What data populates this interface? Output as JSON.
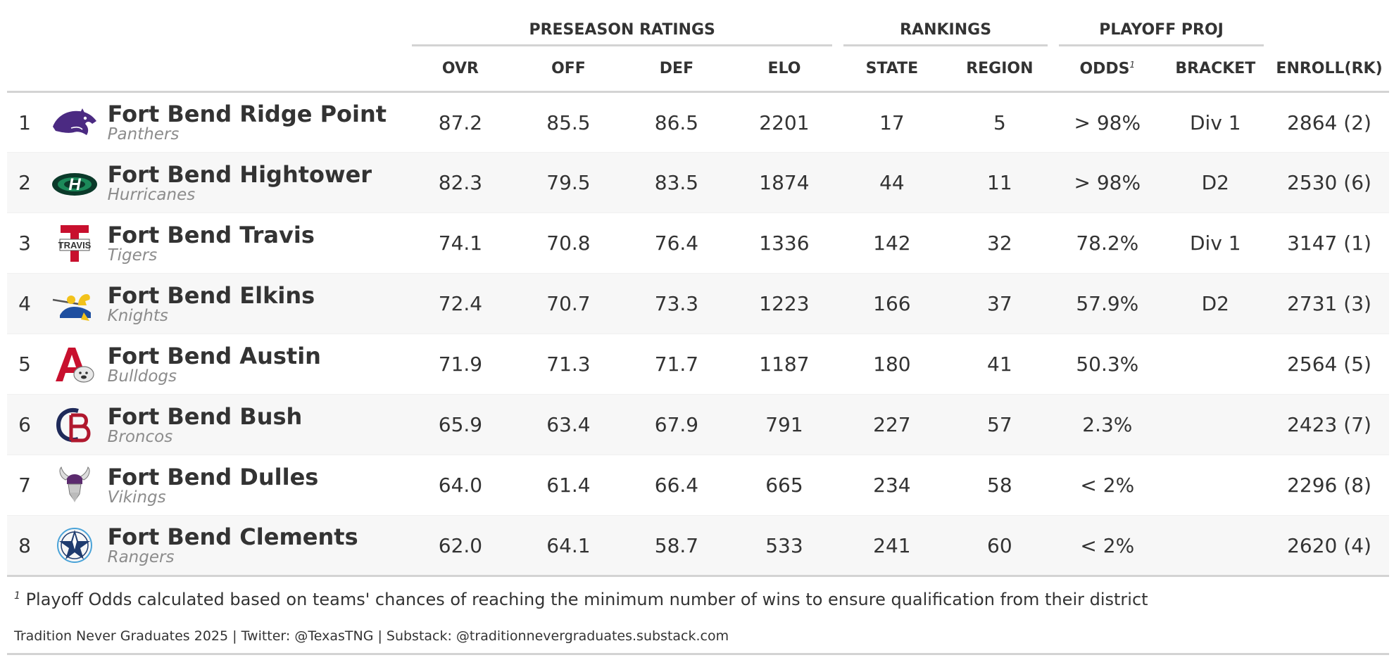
{
  "spanners": {
    "ratings": "PRESEASON RATINGS",
    "rankings": "RANKINGS",
    "playoff": "PLAYOFF PROJ"
  },
  "columns": {
    "ovr": "OVR",
    "off": "OFF",
    "def": "DEF",
    "elo": "ELO",
    "state": "STATE",
    "region": "REGION",
    "odds": "ODDS",
    "odds_mark": "1",
    "bracket": "BRACKET",
    "enroll": "ENROLL(RK)"
  },
  "rows": [
    {
      "rank": "1",
      "team": "Fort Bend Ridge Point",
      "mascot": "Panthers",
      "logo": "panther-logo",
      "ovr": "87.2",
      "off": "85.5",
      "def": "86.5",
      "elo": "2201",
      "state": "17",
      "region": "5",
      "odds": "> 98%",
      "bracket": "Div 1",
      "enroll": "2864 (2)"
    },
    {
      "rank": "2",
      "team": "Fort Bend Hightower",
      "mascot": "Hurricanes",
      "logo": "hurricane-logo",
      "ovr": "82.3",
      "off": "79.5",
      "def": "83.5",
      "elo": "1874",
      "state": "44",
      "region": "11",
      "odds": "> 98%",
      "bracket": "D2",
      "enroll": "2530 (6)"
    },
    {
      "rank": "3",
      "team": "Fort Bend Travis",
      "mascot": "Tigers",
      "logo": "travis-logo",
      "ovr": "74.1",
      "off": "70.8",
      "def": "76.4",
      "elo": "1336",
      "state": "142",
      "region": "32",
      "odds": "78.2%",
      "bracket": "Div 1",
      "enroll": "3147 (1)"
    },
    {
      "rank": "4",
      "team": "Fort Bend Elkins",
      "mascot": "Knights",
      "logo": "knight-logo",
      "ovr": "72.4",
      "off": "70.7",
      "def": "73.3",
      "elo": "1223",
      "state": "166",
      "region": "37",
      "odds": "57.9%",
      "bracket": "D2",
      "enroll": "2731 (3)"
    },
    {
      "rank": "5",
      "team": "Fort Bend Austin",
      "mascot": "Bulldogs",
      "logo": "bulldog-logo",
      "ovr": "71.9",
      "off": "71.3",
      "def": "71.7",
      "elo": "1187",
      "state": "180",
      "region": "41",
      "odds": "50.3%",
      "bracket": "",
      "enroll": "2564 (5)"
    },
    {
      "rank": "6",
      "team": "Fort Bend Bush",
      "mascot": "Broncos",
      "logo": "bush-logo",
      "ovr": "65.9",
      "off": "63.4",
      "def": "67.9",
      "elo": "791",
      "state": "227",
      "region": "57",
      "odds": "2.3%",
      "bracket": "",
      "enroll": "2423 (7)"
    },
    {
      "rank": "7",
      "team": "Fort Bend Dulles",
      "mascot": "Vikings",
      "logo": "viking-logo",
      "ovr": "64.0",
      "off": "61.4",
      "def": "66.4",
      "elo": "665",
      "state": "234",
      "region": "58",
      "odds": "< 2%",
      "bracket": "",
      "enroll": "2296 (8)"
    },
    {
      "rank": "8",
      "team": "Fort Bend Clements",
      "mascot": "Rangers",
      "logo": "ranger-star-logo",
      "ovr": "62.0",
      "off": "64.1",
      "def": "58.7",
      "elo": "533",
      "state": "241",
      "region": "60",
      "odds": "< 2%",
      "bracket": "",
      "enroll": "2620 (4)"
    }
  ],
  "footnote": {
    "mark": "1",
    "text": "Playoff Odds calculated based on teams' chances of reaching the minimum number of wins to ensure qualification from their district"
  },
  "source": "Tradition Never Graduates 2025 | Twitter: @TexasTNG | Substack: @traditionnevergraduates.substack.com",
  "colors": {
    "rule": "#d3d3d3",
    "alt_row": "#f7f7f7",
    "text": "#333333",
    "mascot": "#8c8c8c"
  }
}
